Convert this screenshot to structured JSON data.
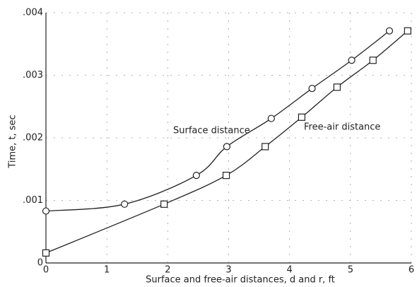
{
  "chart_data": {
    "type": "line",
    "xlabel": "Surface and free-air distances, d and r, ft",
    "ylabel": "Time, t, sec",
    "annotations": [
      "Surface distance",
      "Free-air distance"
    ],
    "series": [
      {
        "name": "Surface distance",
        "color": "#222222",
        "marker": "o",
        "x": [
          0,
          1.29,
          2.47,
          2.97,
          3.7,
          4.37,
          5.02,
          5.64
        ],
        "values": [
          0.00083,
          0.00094,
          0.0014,
          0.00186,
          0.00231,
          0.00279,
          0.00324,
          0.00371
        ]
      },
      {
        "name": "Free-air distance",
        "color": "#222222",
        "marker": "s",
        "x": [
          0,
          1.94,
          2.96,
          3.6,
          4.2,
          4.78,
          5.37,
          5.94
        ],
        "values": [
          0.00016,
          0.00094,
          0.0014,
          0.00186,
          0.00233,
          0.00281,
          0.00324,
          0.00371
        ]
      }
    ],
    "xlim": [
      0,
      6
    ],
    "xticks": [
      0,
      1,
      2,
      3,
      4,
      5,
      6
    ],
    "ylim": [
      0,
      0.004
    ],
    "yticks": [
      0,
      {
        "value": 0.001,
        "label": ".001"
      },
      {
        "value": 0.002,
        "label": ".002"
      },
      {
        "value": 0.003,
        "label": ".003"
      },
      {
        "value": 0.004,
        "label": ".004"
      }
    ],
    "grid": true
  }
}
